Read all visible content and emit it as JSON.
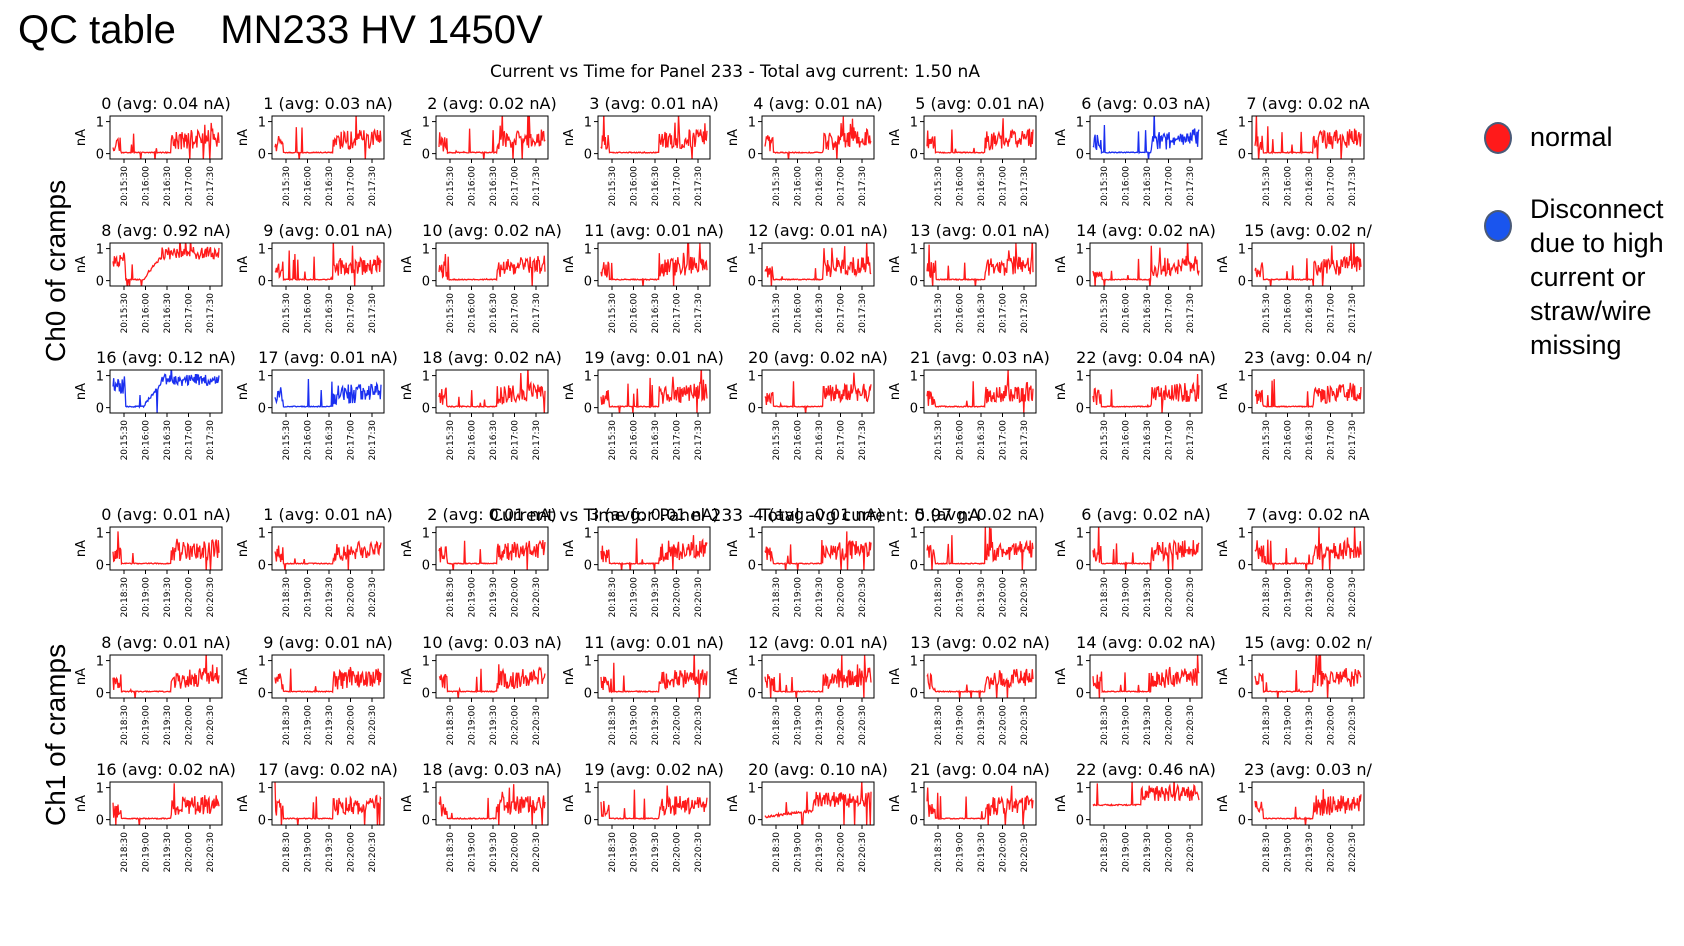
{
  "page_title": "QC table    MN233 HV 1450V",
  "legend": {
    "items": [
      {
        "color": "#ff1a1a",
        "label": "normal"
      },
      {
        "color": "#1a55ee",
        "label": "Disconnect due to high current or straw/wire missing",
        "lines": [
          "Disconnect",
          "due to high",
          "current or",
          "straw/wire",
          "missing"
        ]
      }
    ]
  },
  "blocks": [
    {
      "title": "Current vs Time for Panel 233 - Total avg current: 1.50 nA",
      "side_label": "Ch0 of cramps",
      "time_ticks": [
        "20:15:30",
        "20:16:00",
        "20:16:30",
        "20:17:00",
        "20:17:30"
      ],
      "ylabel": "nA",
      "yticks": [
        "1",
        "0"
      ]
    },
    {
      "title": "Current vs Time for Panel 233 - Total avg current: 0.97 nA",
      "side_label": "Ch1 of cramps",
      "time_ticks": [
        "20:18:30",
        "20:19:00",
        "20:19:30",
        "20:20:00",
        "20:20:30"
      ],
      "ylabel": "nA",
      "yticks": [
        "1",
        "0"
      ]
    }
  ],
  "chart_data": [
    {
      "type": "line",
      "title": "Current vs Time for Panel 233 - Total avg current: 1.50 nA",
      "ylabel": "nA",
      "ylim": [
        0,
        1
      ],
      "x_ticks": [
        "20:15:30",
        "20:16:00",
        "20:16:30",
        "20:17:00",
        "20:17:30"
      ],
      "panels": [
        {
          "title": "0 (avg: 0.04 nA)",
          "status": "normal"
        },
        {
          "title": "1 (avg: 0.03 nA)",
          "status": "normal"
        },
        {
          "title": "2 (avg: 0.02 nA)",
          "status": "normal"
        },
        {
          "title": "3 (avg: 0.01 nA)",
          "status": "normal"
        },
        {
          "title": "4 (avg: 0.01 nA)",
          "status": "normal"
        },
        {
          "title": "5 (avg: 0.01 nA)",
          "status": "normal"
        },
        {
          "title": "6 (avg: 0.03 nA)",
          "status": "disconnect"
        },
        {
          "title": "7 (avg: 0.02 nA",
          "status": "normal"
        },
        {
          "title": "8 (avg: 0.92 nA)",
          "status": "normal"
        },
        {
          "title": "9 (avg: 0.01 nA)",
          "status": "normal"
        },
        {
          "title": "10 (avg: 0.02 nA)",
          "status": "normal"
        },
        {
          "title": "11 (avg: 0.01 nA)",
          "status": "normal"
        },
        {
          "title": "12 (avg: 0.01 nA)",
          "status": "normal"
        },
        {
          "title": "13 (avg: 0.01 nA)",
          "status": "normal"
        },
        {
          "title": "14 (avg: 0.02 nA)",
          "status": "normal"
        },
        {
          "title": "15 (avg: 0.02 n/",
          "status": "normal"
        },
        {
          "title": "16 (avg: 0.12 nA)",
          "status": "disconnect"
        },
        {
          "title": "17 (avg: 0.01 nA)",
          "status": "disconnect"
        },
        {
          "title": "18 (avg: 0.02 nA)",
          "status": "normal"
        },
        {
          "title": "19 (avg: 0.01 nA)",
          "status": "normal"
        },
        {
          "title": "20 (avg: 0.02 nA)",
          "status": "normal"
        },
        {
          "title": "21 (avg: 0.03 nA)",
          "status": "normal"
        },
        {
          "title": "22 (avg: 0.04 nA)",
          "status": "normal"
        },
        {
          "title": "23 (avg: 0.04 n/",
          "status": "normal"
        }
      ]
    },
    {
      "type": "line",
      "title": "Current vs Time for Panel 233 - Total avg current: 0.97 nA",
      "ylabel": "nA",
      "ylim": [
        0,
        1
      ],
      "x_ticks": [
        "20:18:30",
        "20:19:00",
        "20:19:30",
        "20:20:00",
        "20:20:30"
      ],
      "panels": [
        {
          "title": "0 (avg: 0.01 nA)",
          "status": "normal"
        },
        {
          "title": "1 (avg: 0.01 nA)",
          "status": "normal"
        },
        {
          "title": "2 (avg: 0.01 nA)",
          "status": "normal"
        },
        {
          "title": "3 (avg: 0.01 nA)",
          "status": "normal"
        },
        {
          "title": "4 (avg: 0.01 nA)",
          "status": "normal"
        },
        {
          "title": "5 (avg: 0.02 nA)",
          "status": "normal"
        },
        {
          "title": "6 (avg: 0.02 nA)",
          "status": "normal"
        },
        {
          "title": "7 (avg: 0.02 nA",
          "status": "normal"
        },
        {
          "title": "8 (avg: 0.01 nA)",
          "status": "normal"
        },
        {
          "title": "9 (avg: 0.01 nA)",
          "status": "normal"
        },
        {
          "title": "10 (avg: 0.03 nA)",
          "status": "normal"
        },
        {
          "title": "11 (avg: 0.01 nA)",
          "status": "normal"
        },
        {
          "title": "12 (avg: 0.01 nA)",
          "status": "normal"
        },
        {
          "title": "13 (avg: 0.02 nA)",
          "status": "normal"
        },
        {
          "title": "14 (avg: 0.02 nA)",
          "status": "normal"
        },
        {
          "title": "15 (avg: 0.02 n/",
          "status": "normal"
        },
        {
          "title": "16 (avg: 0.02 nA)",
          "status": "normal"
        },
        {
          "title": "17 (avg: 0.02 nA)",
          "status": "normal"
        },
        {
          "title": "18 (avg: 0.03 nA)",
          "status": "normal"
        },
        {
          "title": "19 (avg: 0.02 nA)",
          "status": "normal"
        },
        {
          "title": "20 (avg: 0.10 nA)",
          "status": "normal"
        },
        {
          "title": "21 (avg: 0.04 nA)",
          "status": "normal"
        },
        {
          "title": "22 (avg: 0.46 nA)",
          "status": "normal"
        },
        {
          "title": "23 (avg: 0.03 n/",
          "status": "normal"
        }
      ]
    }
  ],
  "colors": {
    "normal": "#ff1a1a",
    "disconnect": "#1a2ff0"
  }
}
